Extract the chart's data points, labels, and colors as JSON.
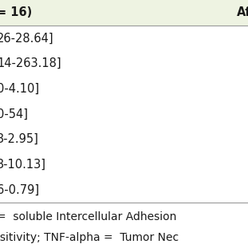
{
  "header_left": "= 16)",
  "header_right": "Af",
  "header_bg": "#eef3e2",
  "data_rows": [
    "26-28.64]",
    "14-263.18]",
    "0-4.10]",
    "0-54]",
    "3-2.95]",
    "3-10.13]",
    "6-0.79]"
  ],
  "footer_lines": [
    "=  soluble Intercellular Adhesion",
    "isitivity; TNF-alpha =  Tumor Nec"
  ],
  "bg_color": "#ffffff",
  "header_font_size": 10.5,
  "data_font_size": 10.5,
  "footer_font_size": 10.0,
  "text_color": "#1a1a1a",
  "line_color": "#999999",
  "header_text_color": "#1a1a1a"
}
